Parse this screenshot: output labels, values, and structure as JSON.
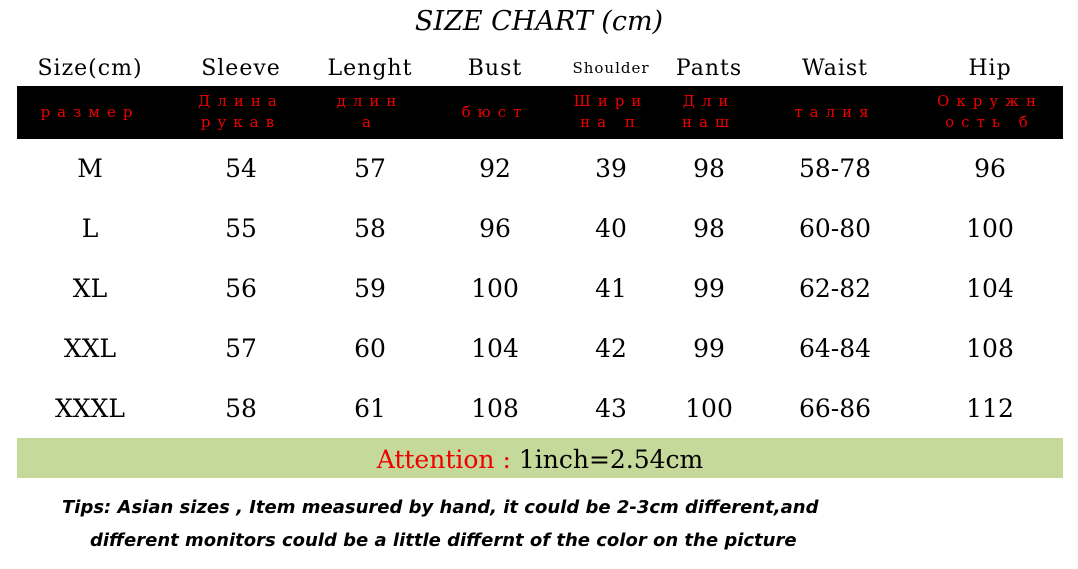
{
  "title": "SIZE CHART (cm)",
  "headers": [
    "Size(cm)",
    "Sleeve",
    "Lenght",
    "Bust",
    "Shoulder",
    "Pants",
    "Waist",
    "Hip"
  ],
  "russian": [
    [
      "размер",
      ""
    ],
    [
      "Длина",
      "рукав"
    ],
    [
      "длин",
      "а"
    ],
    [
      "бюст",
      ""
    ],
    [
      "Шири",
      "на п"
    ],
    [
      "Дли",
      "наш"
    ],
    [
      "талия",
      ""
    ],
    [
      "Окружн",
      "ость б"
    ]
  ],
  "rows": [
    [
      "M",
      "54",
      "57",
      "92",
      "39",
      "98",
      "58-78",
      "96"
    ],
    [
      "L",
      "55",
      "58",
      "96",
      "40",
      "98",
      "60-80",
      "100"
    ],
    [
      "XL",
      "56",
      "59",
      "100",
      "41",
      "99",
      "62-82",
      "104"
    ],
    [
      "XXL",
      "57",
      "60",
      "104",
      "42",
      "99",
      "64-84",
      "108"
    ],
    [
      "XXXL",
      "58",
      "61",
      "108",
      "43",
      "100",
      "66-86",
      "112"
    ]
  ],
  "attention": {
    "label": "Attention :",
    "value": "1inch=2.54cm"
  },
  "tips": [
    "Tips: Asian sizes  , Item measured by hand, it could be 2-3cm different,and",
    "different monitors could be a little differnt of the color on the picture"
  ],
  "colors": {
    "header_band": "#000000",
    "russian_text": "#ee0000",
    "attention_bg": "#c5d99a"
  }
}
